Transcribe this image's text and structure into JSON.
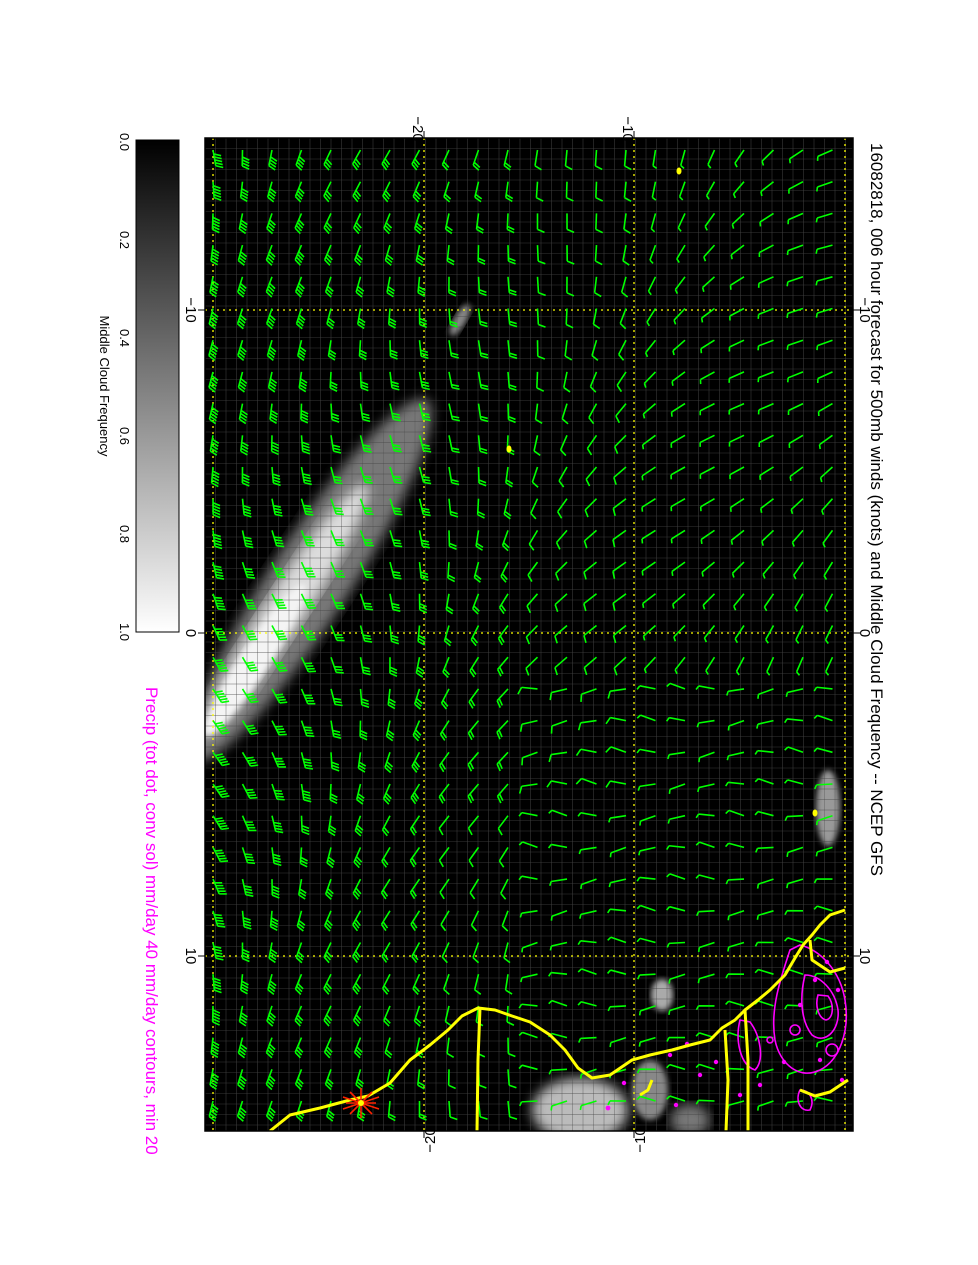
{
  "title": "16082818, 006 hour forecast for 500mb winds (knots) and Middle Cloud Frequency -- NCEP GFS",
  "precip_caption": "Precip (tot dot, conv sol) mm/day 40 mm/day contours, min 20",
  "colorbar": {
    "label": "Middle Cloud Frequency",
    "ticks": [
      "0.0",
      "0.2",
      "0.4",
      "0.6",
      "0.8",
      "1.0"
    ]
  },
  "axes": {
    "outer_top_ticks": [
      "−20",
      "−10"
    ],
    "outer_bottom_ticks": [
      "−20",
      "−10"
    ],
    "inner_left_ticks": [
      "−10",
      "0",
      "10"
    ],
    "inner_right_ticks": [
      "−10",
      "0",
      "10"
    ]
  },
  "colors": {
    "background": "#000000",
    "wind_barbs": "#00ff00",
    "coastline": "#ffff00",
    "precip_contours": "#ff00ff",
    "grid": "#ffff00",
    "marker": "#ff2200"
  },
  "icons": [
    "wind-barb-icon",
    "storm-marker-icon"
  ]
}
